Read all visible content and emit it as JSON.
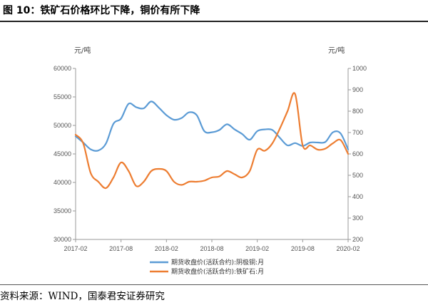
{
  "figure": {
    "title": "图 10：铁矿石价格环比下降，铜价有所下降",
    "source": "资料来源：WIND，国泰君安证券研究"
  },
  "chart_data": {
    "type": "line",
    "left_unit": "元/吨",
    "right_unit": "元/吨",
    "left_axis": {
      "min": 30000,
      "max": 60000,
      "ticks": [
        "30000",
        "35000",
        "40000",
        "45000",
        "50000",
        "55000",
        "60000"
      ]
    },
    "right_axis": {
      "min": 200,
      "max": 1000,
      "ticks": [
        "200",
        "300",
        "400",
        "500",
        "600",
        "700",
        "800",
        "900",
        "1000"
      ]
    },
    "x_range": [
      "2017-02",
      "2020-02"
    ],
    "x_ticks": [
      "2017-02",
      "2017-08",
      "2018-02",
      "2018-08",
      "2019-02",
      "2019-08",
      "2020-02"
    ],
    "grid": false,
    "legend_position": "bottom",
    "series": [
      {
        "name": "期货收盘价(活跃合约):阴极铜:月",
        "axis": "left",
        "color": "#5b9bd5",
        "points": [
          [
            "2017-02",
            48100
          ],
          [
            "2017-03",
            47000
          ],
          [
            "2017-04",
            45800
          ],
          [
            "2017-05",
            45600
          ],
          [
            "2017-06",
            46800
          ],
          [
            "2017-07",
            50300
          ],
          [
            "2017-08",
            51200
          ],
          [
            "2017-09",
            53800
          ],
          [
            "2017-10",
            53200
          ],
          [
            "2017-11",
            53000
          ],
          [
            "2017-12",
            54200
          ],
          [
            "2018-01",
            53100
          ],
          [
            "2018-02",
            51800
          ],
          [
            "2018-03",
            51000
          ],
          [
            "2018-04",
            51300
          ],
          [
            "2018-05",
            52300
          ],
          [
            "2018-06",
            51800
          ],
          [
            "2018-07",
            49000
          ],
          [
            "2018-08",
            48800
          ],
          [
            "2018-09",
            49200
          ],
          [
            "2018-10",
            50200
          ],
          [
            "2018-11",
            49300
          ],
          [
            "2018-12",
            48500
          ],
          [
            "2019-01",
            47500
          ],
          [
            "2019-02",
            49000
          ],
          [
            "2019-03",
            49300
          ],
          [
            "2019-04",
            49200
          ],
          [
            "2019-05",
            47800
          ],
          [
            "2019-06",
            46500
          ],
          [
            "2019-07",
            46900
          ],
          [
            "2019-08",
            46400
          ],
          [
            "2019-09",
            47000
          ],
          [
            "2019-10",
            47000
          ],
          [
            "2019-11",
            47100
          ],
          [
            "2019-12",
            48800
          ],
          [
            "2020-01",
            48600
          ],
          [
            "2020-02",
            45800
          ]
        ]
      },
      {
        "name": "期货收盘价(活跃合约):铁矿石:月",
        "axis": "right",
        "color": "#ed7d31",
        "points": [
          [
            "2017-02",
            690
          ],
          [
            "2017-03",
            650
          ],
          [
            "2017-04",
            510
          ],
          [
            "2017-05",
            470
          ],
          [
            "2017-06",
            440
          ],
          [
            "2017-07",
            490
          ],
          [
            "2017-08",
            560
          ],
          [
            "2017-09",
            520
          ],
          [
            "2017-10",
            450
          ],
          [
            "2017-11",
            470
          ],
          [
            "2017-12",
            520
          ],
          [
            "2018-01",
            530
          ],
          [
            "2018-02",
            520
          ],
          [
            "2018-03",
            470
          ],
          [
            "2018-04",
            455
          ],
          [
            "2018-05",
            470
          ],
          [
            "2018-06",
            470
          ],
          [
            "2018-07",
            475
          ],
          [
            "2018-08",
            490
          ],
          [
            "2018-09",
            495
          ],
          [
            "2018-10",
            520
          ],
          [
            "2018-11",
            505
          ],
          [
            "2018-12",
            490
          ],
          [
            "2019-01",
            520
          ],
          [
            "2019-02",
            620
          ],
          [
            "2019-03",
            615
          ],
          [
            "2019-04",
            650
          ],
          [
            "2019-05",
            720
          ],
          [
            "2019-06",
            800
          ],
          [
            "2019-07",
            880
          ],
          [
            "2019-08",
            640
          ],
          [
            "2019-09",
            640
          ],
          [
            "2019-10",
            620
          ],
          [
            "2019-11",
            625
          ],
          [
            "2019-12",
            650
          ],
          [
            "2020-01",
            665
          ],
          [
            "2020-02",
            600
          ]
        ]
      }
    ]
  }
}
